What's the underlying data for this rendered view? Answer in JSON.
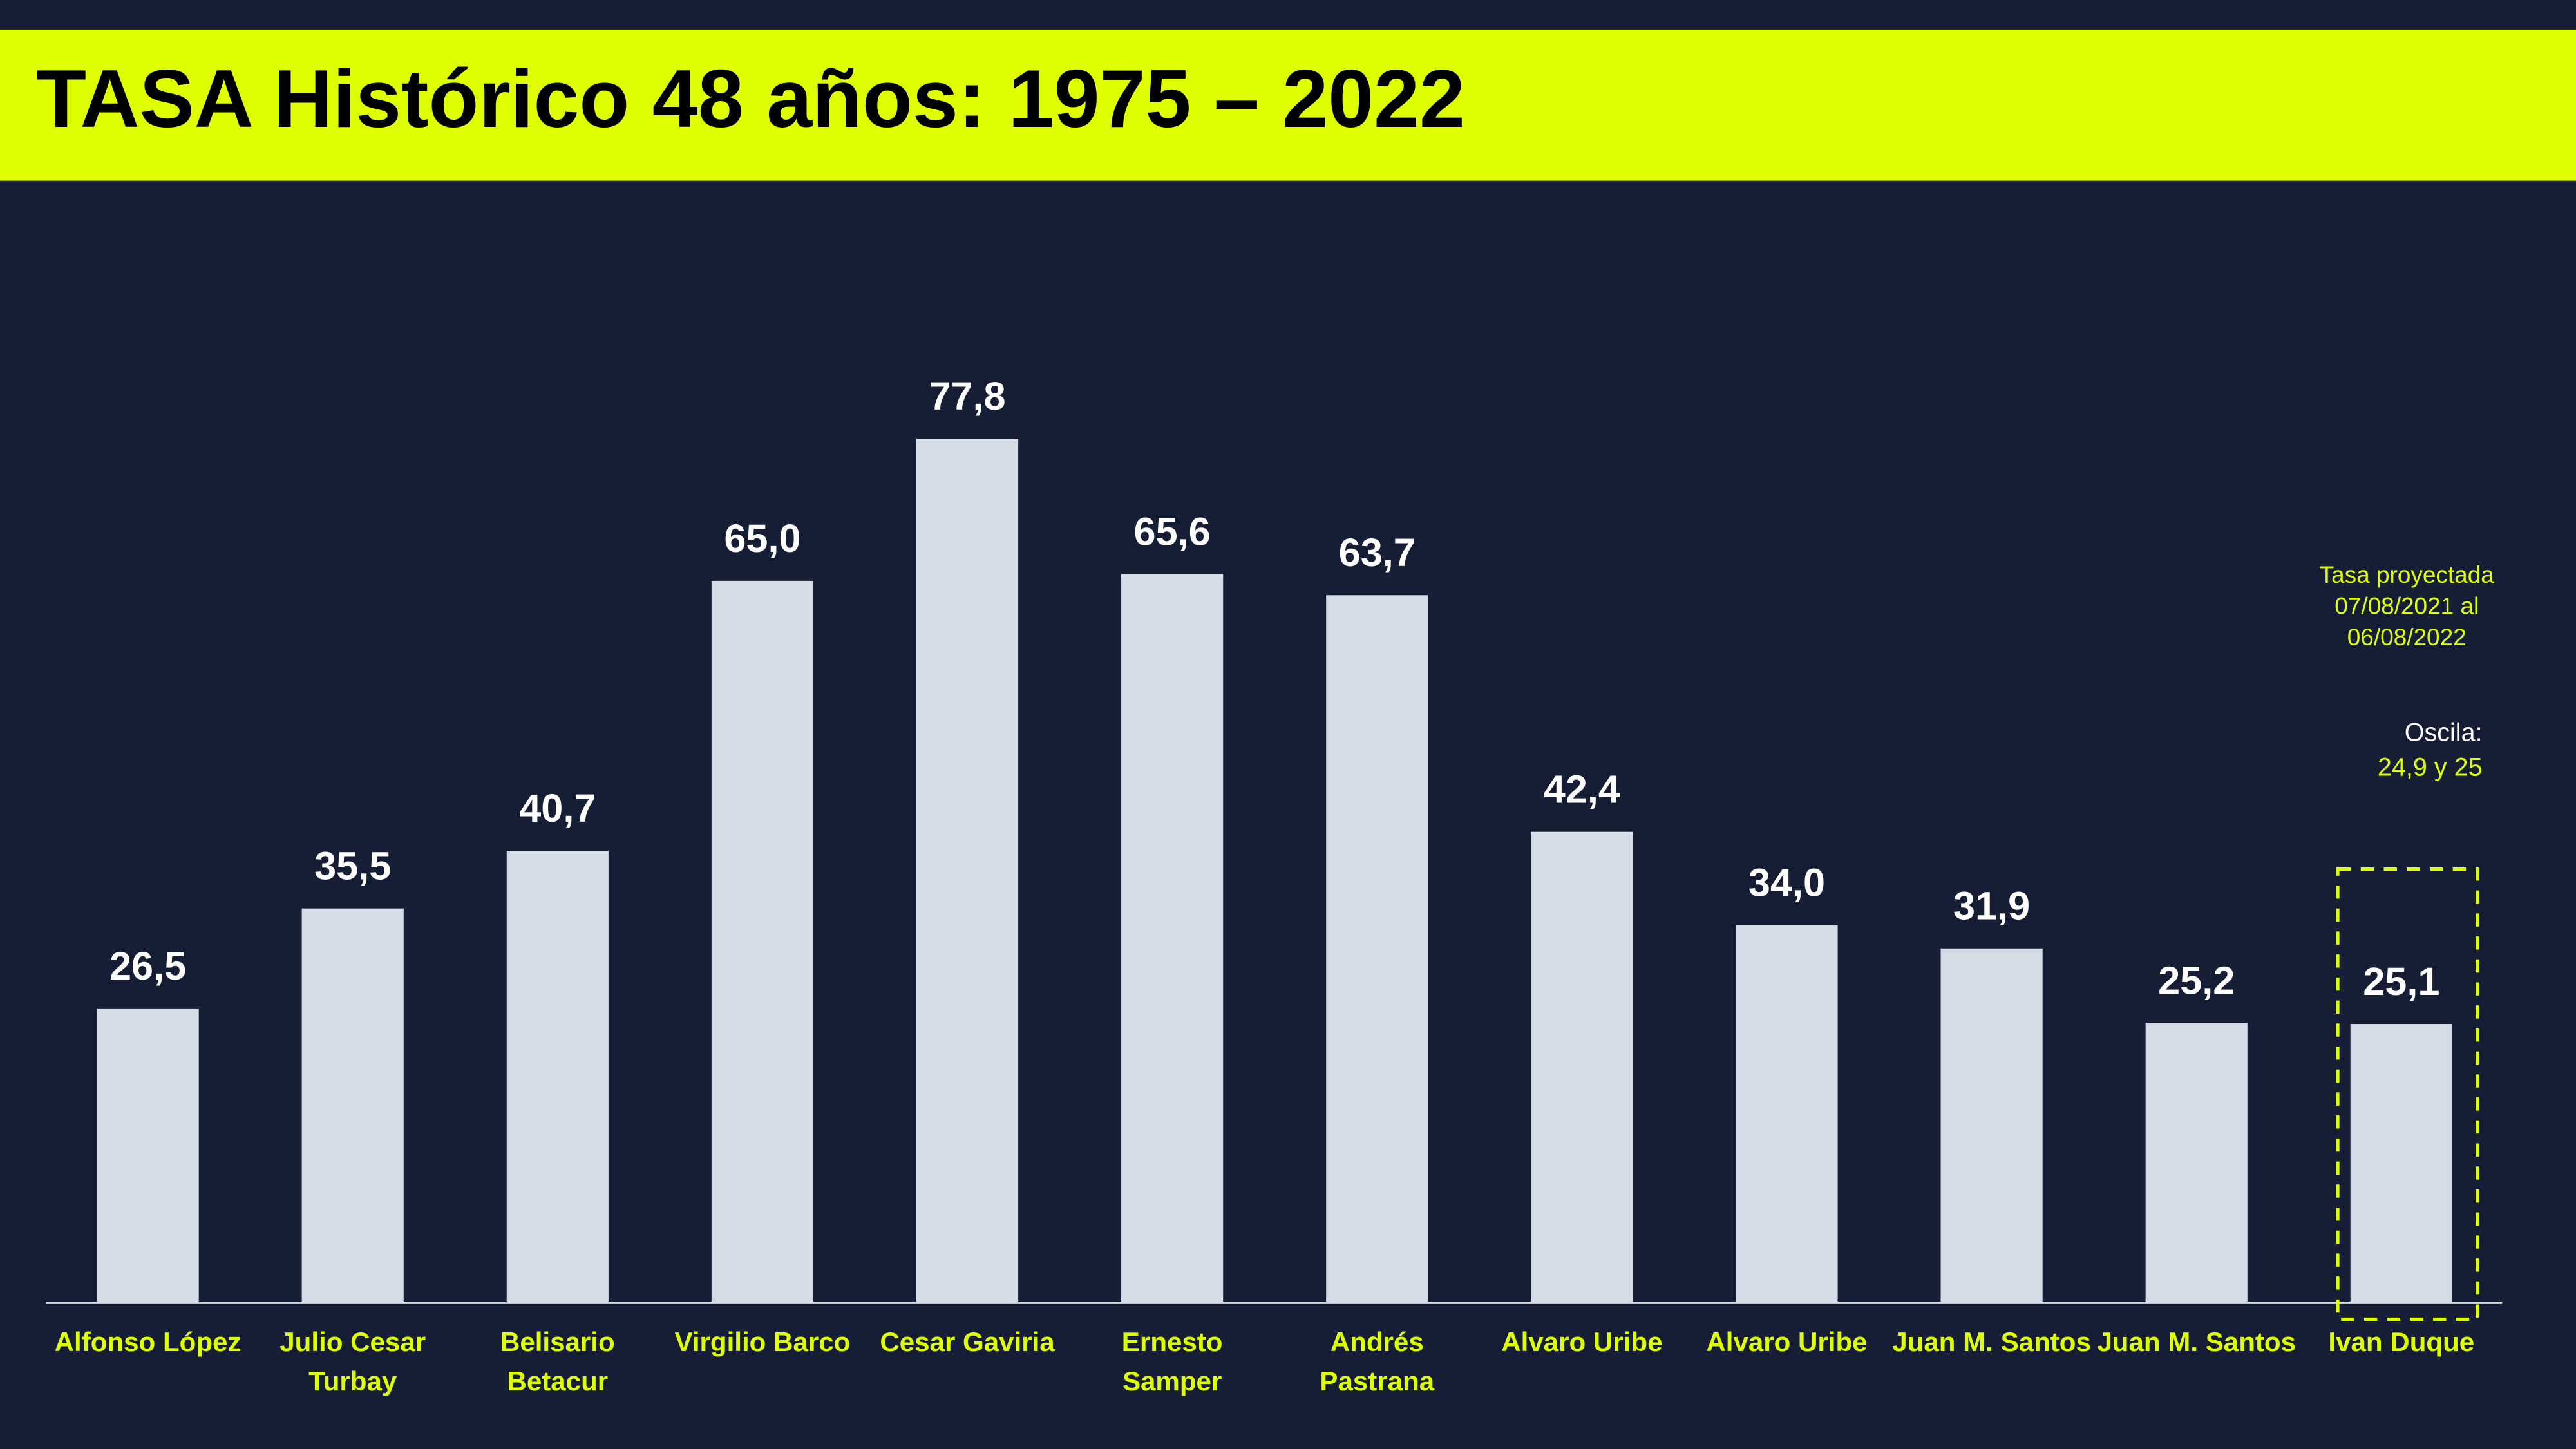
{
  "chart_data": {
    "type": "bar",
    "title": "TASA Histórico 48 años: 1975 – 2022",
    "categories": [
      [
        "Alfonso López"
      ],
      [
        "Julio Cesar",
        "Turbay"
      ],
      [
        "Belisario",
        "Betacur"
      ],
      [
        "Virgilio Barco"
      ],
      [
        "Cesar Gaviria"
      ],
      [
        "Ernesto",
        "Samper"
      ],
      [
        "Andrés",
        "Pastrana"
      ],
      [
        "Alvaro Uribe"
      ],
      [
        "Alvaro Uribe"
      ],
      [
        "Juan M. Santos"
      ],
      [
        "Juan M. Santos"
      ],
      [
        "Ivan Duque"
      ]
    ],
    "values": [
      26.5,
      35.5,
      40.7,
      65.0,
      77.8,
      65.6,
      63.7,
      42.4,
      34.0,
      31.9,
      25.2,
      25.1
    ],
    "value_labels": [
      "26,5",
      "35,5",
      "40,7",
      "65,0",
      "77,8",
      "65,6",
      "63,7",
      "42,4",
      "34,0",
      "31,9",
      "25,2",
      "25,1"
    ],
    "color": "#d5dce6",
    "annotation": [
      "Tasa proyectada",
      "07/08/2021 al",
      "06/08/2022"
    ],
    "annotation_2": [
      "Oscila:",
      "24,9 y 25"
    ]
  }
}
